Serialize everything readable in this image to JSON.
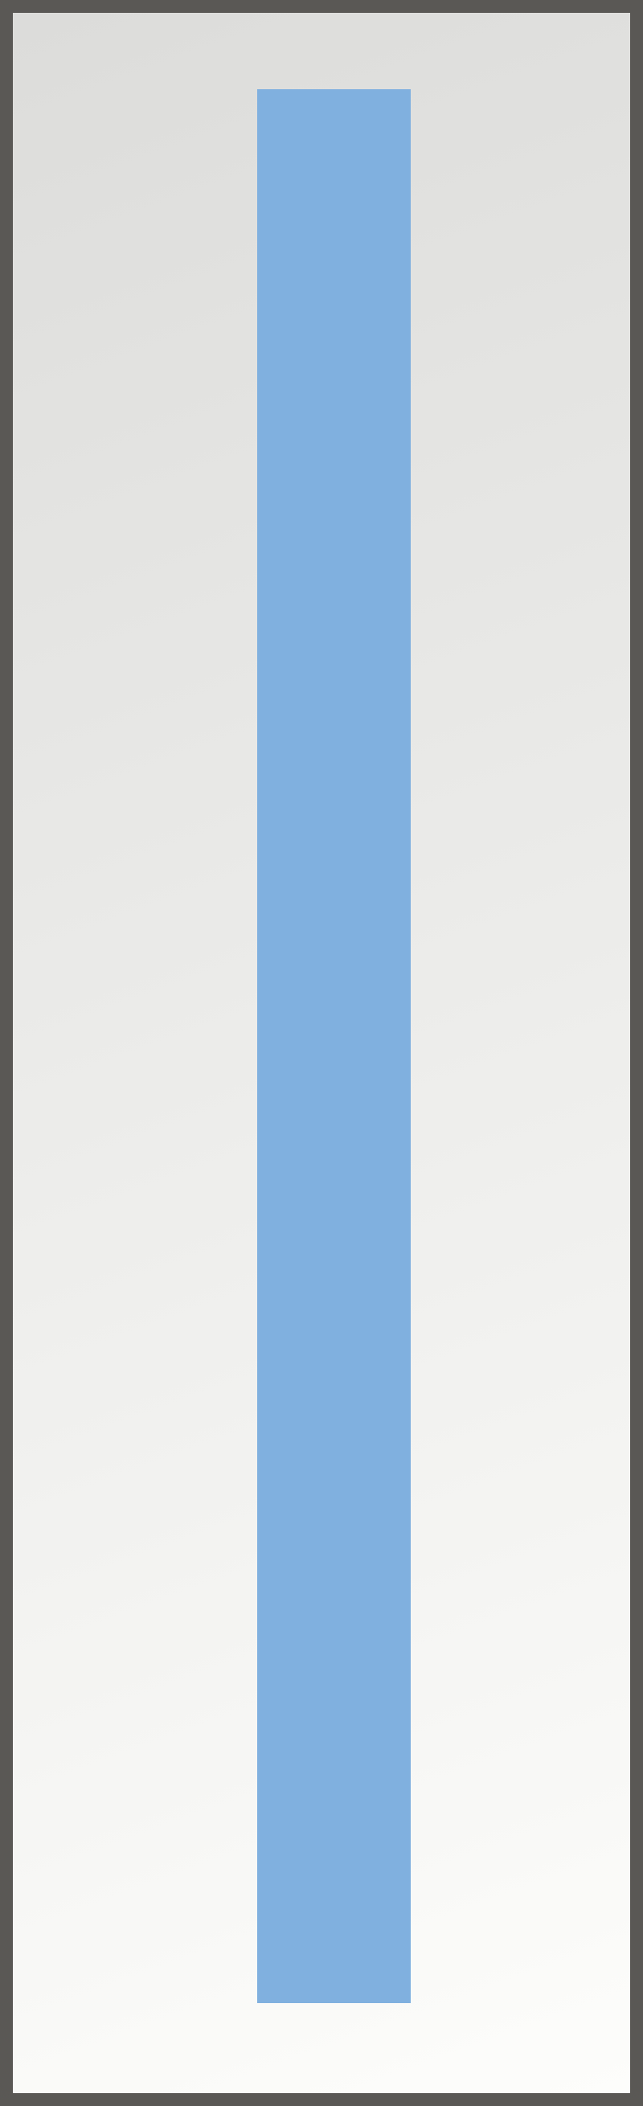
{
  "colors": {
    "frame": "#5a5855",
    "bar": "#80b0df",
    "background_top": "#dcdcda",
    "background_bottom": "#fdfdfb"
  }
}
